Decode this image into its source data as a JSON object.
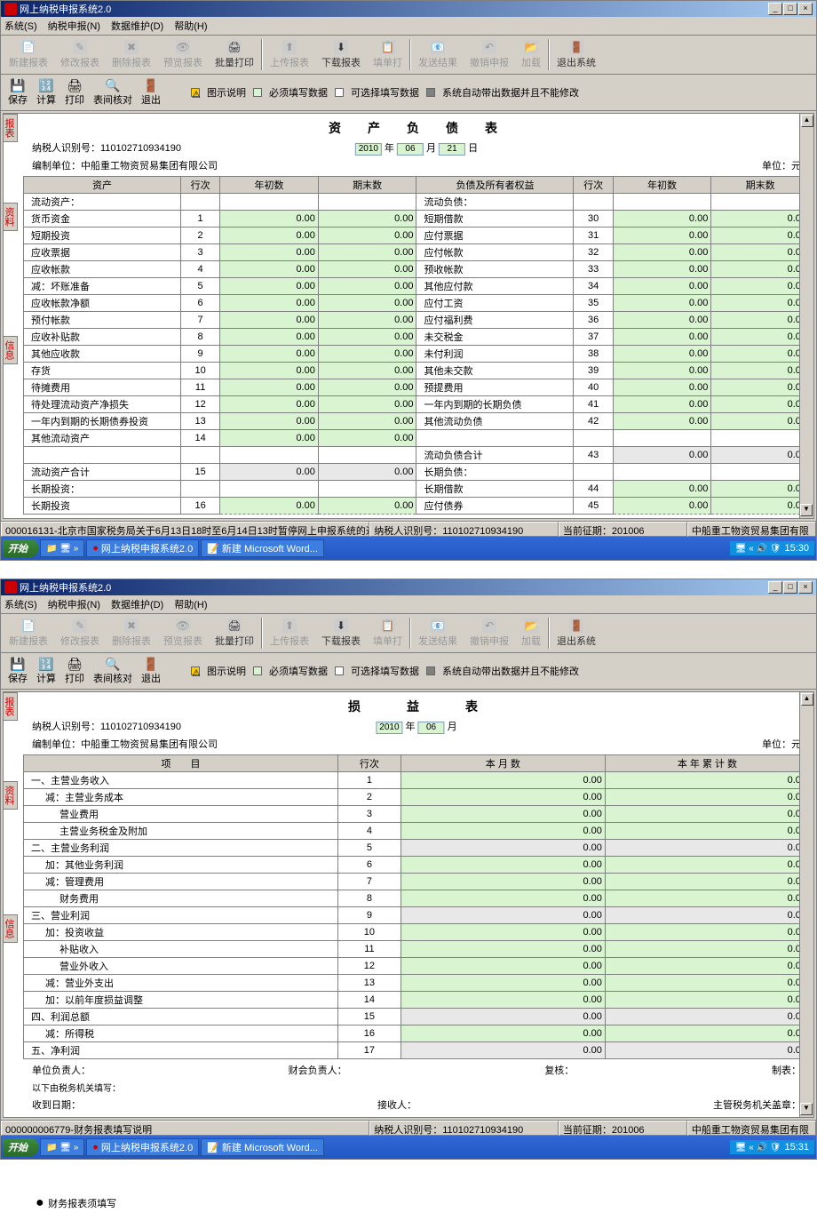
{
  "app_title": "网上纳税申报系统2.0",
  "menu": {
    "system": "系统(S)",
    "declare": "纳税申报(N)",
    "data": "数据维护(D)",
    "help": "帮助(H)"
  },
  "toolbar": {
    "new": "新建报表",
    "modify": "修改报表",
    "delete": "删除报表",
    "preview": "预览报表",
    "batchprint": "批量打印",
    "upload": "上传报表",
    "download": "下载报表",
    "fillout": "填单打",
    "sendresult": "发送结果",
    "cancel": "撤销申报",
    "load": "加载",
    "exit": "退出系统"
  },
  "toolbar2": {
    "save": "保存",
    "calc": "计算",
    "print": "打印",
    "query": "表间核对",
    "exit": "退出"
  },
  "legend": {
    "explain": "图示说明",
    "required": "必须填写数据",
    "optional": "可选择填写数据",
    "auto": "系统自动带出数据并且不能修改"
  },
  "colors": {
    "required": "#d9f4d0",
    "optional": "#ffffff",
    "auto": "#808080",
    "warn": "#ffcc00"
  },
  "sidetabs": {
    "t1": "报表",
    "t2": "资料",
    "t3": "信息"
  },
  "screen1": {
    "title": "资　产　负　债　表",
    "date": {
      "year": "2010",
      "month": "06",
      "day": "21"
    },
    "taxid_label": "纳税人识别号：",
    "taxid": "110102710934190",
    "org_label": "编制单位：",
    "org": "中船重工物资贸易集团有限公司",
    "unit": "单位：元",
    "cols": {
      "asset": "资产",
      "row": "行次",
      "begin": "年初数",
      "end": "期末数",
      "liab": "负债及所有者权益"
    },
    "rows_left": [
      {
        "l": "流动资产：",
        "r": "",
        "b": "",
        "e": ""
      },
      {
        "l": "货币资金",
        "r": "1",
        "b": "0.00",
        "e": "0.00"
      },
      {
        "l": "短期投资",
        "r": "2",
        "b": "0.00",
        "e": "0.00"
      },
      {
        "l": "应收票据",
        "r": "3",
        "b": "0.00",
        "e": "0.00"
      },
      {
        "l": "应收帐款",
        "r": "4",
        "b": "0.00",
        "e": "0.00"
      },
      {
        "l": "减：坏账准备",
        "r": "5",
        "b": "0.00",
        "e": "0.00"
      },
      {
        "l": "应收帐款净额",
        "r": "6",
        "b": "0.00",
        "e": "0.00"
      },
      {
        "l": "预付帐款",
        "r": "7",
        "b": "0.00",
        "e": "0.00"
      },
      {
        "l": "应收补贴款",
        "r": "8",
        "b": "0.00",
        "e": "0.00"
      },
      {
        "l": "其他应收款",
        "r": "9",
        "b": "0.00",
        "e": "0.00"
      },
      {
        "l": "存货",
        "r": "10",
        "b": "0.00",
        "e": "0.00"
      },
      {
        "l": "待摊费用",
        "r": "11",
        "b": "0.00",
        "e": "0.00"
      },
      {
        "l": "待处理流动资产净损失",
        "r": "12",
        "b": "0.00",
        "e": "0.00"
      },
      {
        "l": "一年内到期的长期债券投资",
        "r": "13",
        "b": "0.00",
        "e": "0.00"
      },
      {
        "l": "其他流动资产",
        "r": "14",
        "b": "0.00",
        "e": "0.00"
      },
      {
        "l": "",
        "r": "",
        "b": "",
        "e": ""
      },
      {
        "l": "流动资产合计",
        "r": "15",
        "b": "0.00",
        "e": "0.00",
        "gray": true
      },
      {
        "l": "长期投资：",
        "r": "",
        "b": "",
        "e": ""
      },
      {
        "l": "长期投资",
        "r": "16",
        "b": "0.00",
        "e": "0.00"
      }
    ],
    "rows_right": [
      {
        "l": "流动负债：",
        "r": "",
        "b": "",
        "e": ""
      },
      {
        "l": "短期借款",
        "r": "30",
        "b": "0.00",
        "e": "0.00"
      },
      {
        "l": "应付票据",
        "r": "31",
        "b": "0.00",
        "e": "0.00"
      },
      {
        "l": "应付帐款",
        "r": "32",
        "b": "0.00",
        "e": "0.00"
      },
      {
        "l": "预收帐款",
        "r": "33",
        "b": "0.00",
        "e": "0.00"
      },
      {
        "l": "其他应付款",
        "r": "34",
        "b": "0.00",
        "e": "0.00"
      },
      {
        "l": "应付工资",
        "r": "35",
        "b": "0.00",
        "e": "0.00"
      },
      {
        "l": "应付福利费",
        "r": "36",
        "b": "0.00",
        "e": "0.00"
      },
      {
        "l": "未交税金",
        "r": "37",
        "b": "0.00",
        "e": "0.00"
      },
      {
        "l": "未付利润",
        "r": "38",
        "b": "0.00",
        "e": "0.00"
      },
      {
        "l": "其他未交款",
        "r": "39",
        "b": "0.00",
        "e": "0.00"
      },
      {
        "l": "预提费用",
        "r": "40",
        "b": "0.00",
        "e": "0.00"
      },
      {
        "l": "一年内到期的长期负债",
        "r": "41",
        "b": "0.00",
        "e": "0.00"
      },
      {
        "l": "其他流动负债",
        "r": "42",
        "b": "0.00",
        "e": "0.00"
      },
      {
        "l": "",
        "r": "",
        "b": "",
        "e": ""
      },
      {
        "l": "流动负债合计",
        "r": "43",
        "b": "0.00",
        "e": "0.00",
        "gray": true
      },
      {
        "l": "长期负债：",
        "r": "",
        "b": "",
        "e": ""
      },
      {
        "l": "长期借款",
        "r": "44",
        "b": "0.00",
        "e": "0.00"
      },
      {
        "l": "应付债券",
        "r": "45",
        "b": "0.00",
        "e": "0.00"
      }
    ],
    "status": {
      "msg": "000016131-北京市国家税务局关于6月13日18时至6月14日13时暂停网上申报系统的通知",
      "taxid": "纳税人识别号：110102710934190",
      "period": "当前征期：201006",
      "org": "中船重工物资贸易集团有限"
    },
    "time": "15:30"
  },
  "screen2": {
    "title": "损　　益　　表",
    "date": {
      "year": "2010",
      "month": "06"
    },
    "taxid_label": "纳税人识别号：",
    "taxid": "110102710934190",
    "org_label": "编制单位：",
    "org": "中船重工物资贸易集团有限公司",
    "unit": "单位：元",
    "cols": {
      "item": "项　　目",
      "row": "行次",
      "month": "本 月 数",
      "year": "本 年 累 计 数"
    },
    "rows": [
      {
        "l": "一、主营业务收入",
        "r": "1",
        "m": "0.00",
        "y": "0.00"
      },
      {
        "l": "减：主营业务成本",
        "r": "2",
        "m": "0.00",
        "y": "0.00",
        "i": 1
      },
      {
        "l": "营业费用",
        "r": "3",
        "m": "0.00",
        "y": "0.00",
        "i": 2
      },
      {
        "l": "主营业务税金及附加",
        "r": "4",
        "m": "0.00",
        "y": "0.00",
        "i": 2
      },
      {
        "l": "二、主营业务利润",
        "r": "5",
        "m": "0.00",
        "y": "0.00",
        "gray": true
      },
      {
        "l": "加：其他业务利润",
        "r": "6",
        "m": "0.00",
        "y": "0.00",
        "i": 1
      },
      {
        "l": "减：管理费用",
        "r": "7",
        "m": "0.00",
        "y": "0.00",
        "i": 1
      },
      {
        "l": "财务费用",
        "r": "8",
        "m": "0.00",
        "y": "0.00",
        "i": 2
      },
      {
        "l": "三、营业利润",
        "r": "9",
        "m": "0.00",
        "y": "0.00",
        "gray": true
      },
      {
        "l": "加：投资收益",
        "r": "10",
        "m": "0.00",
        "y": "0.00",
        "i": 1
      },
      {
        "l": "补贴收入",
        "r": "11",
        "m": "0.00",
        "y": "0.00",
        "i": 2
      },
      {
        "l": "营业外收入",
        "r": "12",
        "m": "0.00",
        "y": "0.00",
        "i": 2
      },
      {
        "l": "减：营业外支出",
        "r": "13",
        "m": "0.00",
        "y": "0.00",
        "i": 1
      },
      {
        "l": "加：以前年度损益调整",
        "r": "14",
        "m": "0.00",
        "y": "0.00",
        "i": 1
      },
      {
        "l": "四、利润总额",
        "r": "15",
        "m": "0.00",
        "y": "0.00",
        "gray": true
      },
      {
        "l": "减：所得税",
        "r": "16",
        "m": "0.00",
        "y": "0.00",
        "i": 1
      },
      {
        "l": "五、净利润",
        "r": "17",
        "m": "0.00",
        "y": "0.00",
        "gray": true
      }
    ],
    "footer": {
      "unit_head": "单位负责人：",
      "fin_head": "财会负责人：",
      "review": "复核：",
      "prep": "制表：",
      "note": "以下由税务机关填写：",
      "rcv_date": "收到日期：",
      "rcv_by": "接收人：",
      "audit": "主管税务机关盖章："
    },
    "status": {
      "msg": "000000006779-财务报表填写说明",
      "taxid": "纳税人识别号：110102710934190",
      "period": "当前征期：201006",
      "org": "中船重工物资贸易集团有限"
    },
    "time": "15:31"
  },
  "taskbar": {
    "start": "开始",
    "app1": "网上纳税申报系统2.0",
    "app2": "新建 Microsoft Word..."
  },
  "bullet": "财务报表须填写"
}
